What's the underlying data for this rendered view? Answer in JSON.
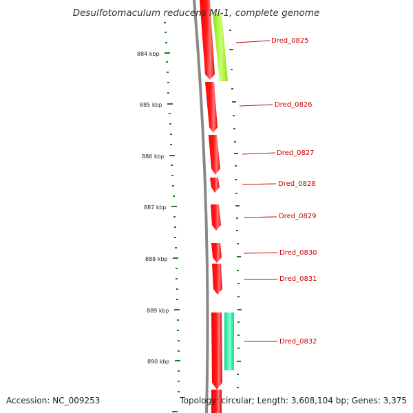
{
  "title": "Desulfotomaculum reducens MI-1, complete genome",
  "scale_labels": [
    "884 kbp",
    "885 kbp",
    "886 kbp",
    "887 kbp",
    "888 kbp",
    "889 kbp",
    "890 kbp"
  ],
  "genes": [
    "Dred_0825",
    "Dred_0826",
    "Dred_0827",
    "Dred_0828",
    "Dred_0829",
    "Dred_0830",
    "Dred_0831",
    "Dred_0832"
  ],
  "footer": {
    "accession": "Accession: NC_009253",
    "topology": "Topology: circular; Length: 3,608,104 bp; Genes: 3,375"
  },
  "colors": {
    "forward_feature": "#ff0000",
    "reverse_feature_light": "#9fe81c",
    "reverse_feature_teal": "#1be0a0",
    "backbone": "#888888",
    "ticks": "#1a7a1a",
    "gene_label": "#cc0000"
  }
}
